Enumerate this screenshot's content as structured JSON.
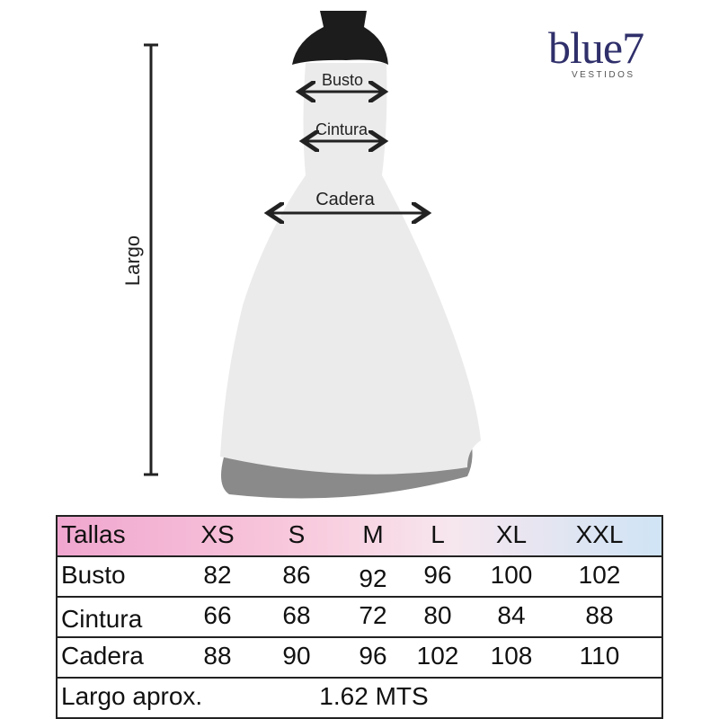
{
  "logo": {
    "brand": "blue7",
    "tagline": "VESTIDOS"
  },
  "measures": {
    "busto": "Busto",
    "cintura": "Cintura",
    "cadera": "Cadera",
    "largo": "Largo"
  },
  "table": {
    "header": {
      "label": "Tallas",
      "sizes": [
        "XS",
        "S",
        "M",
        "L",
        "XL",
        "XXL"
      ]
    },
    "rows": [
      {
        "label": "Busto",
        "values": [
          "82",
          "86",
          "92",
          "96",
          "100",
          "102"
        ]
      },
      {
        "label": "Cintura",
        "values": [
          "66",
          "68",
          "72",
          "80",
          "84",
          "88"
        ]
      },
      {
        "label": "Cadera",
        "values": [
          "88",
          "90",
          "96",
          "102",
          "108",
          "110"
        ]
      }
    ],
    "footer": {
      "label": "Largo aprox.",
      "value": "1.62 MTS"
    }
  },
  "colors": {
    "header_gradient": [
      "#f0a6cf",
      "#cfe4f5"
    ],
    "logo": "#2f2f6b"
  }
}
